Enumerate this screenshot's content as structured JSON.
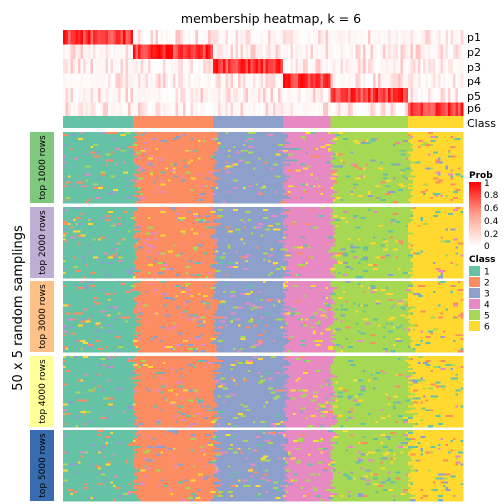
{
  "chart_data": {
    "type": "heatmap",
    "title": "membership heatmap, k = 6",
    "annotation_rows": [
      "p1",
      "p2",
      "p3",
      "p4",
      "p5",
      "p6",
      "Class"
    ],
    "ylabel": "50 x 5 random samplings",
    "row_groups": [
      "top 1000 rows",
      "top 2000 rows",
      "top 3000 rows",
      "top 4000 rows",
      "top 5000 rows"
    ],
    "class_order": [
      1,
      2,
      3,
      4,
      5,
      6
    ],
    "class_widths": [
      0.178,
      0.2,
      0.175,
      0.115,
      0.197,
      0.135
    ],
    "prob_legend": {
      "title": "Prob",
      "ticks": [
        "1",
        "0.8",
        "0.6",
        "0.4",
        "0.2",
        "0"
      ],
      "range": [
        0,
        1
      ]
    },
    "class_legend": {
      "title": "Class",
      "items": [
        {
          "label": "1",
          "color": "#66C2A5"
        },
        {
          "label": "2",
          "color": "#FC8D62"
        },
        {
          "label": "3",
          "color": "#8DA0CB"
        },
        {
          "label": "4",
          "color": "#E78AC3"
        },
        {
          "label": "5",
          "color": "#A6D854"
        },
        {
          "label": "6",
          "color": "#FFD92F"
        }
      ]
    },
    "group_colors": [
      "#7FC97F",
      "#BEAED4",
      "#FDC086",
      "#FFFF99",
      "#386CB0"
    ],
    "prob_colors": {
      "low": "#FFFFFF",
      "high": "#FF0000"
    }
  }
}
